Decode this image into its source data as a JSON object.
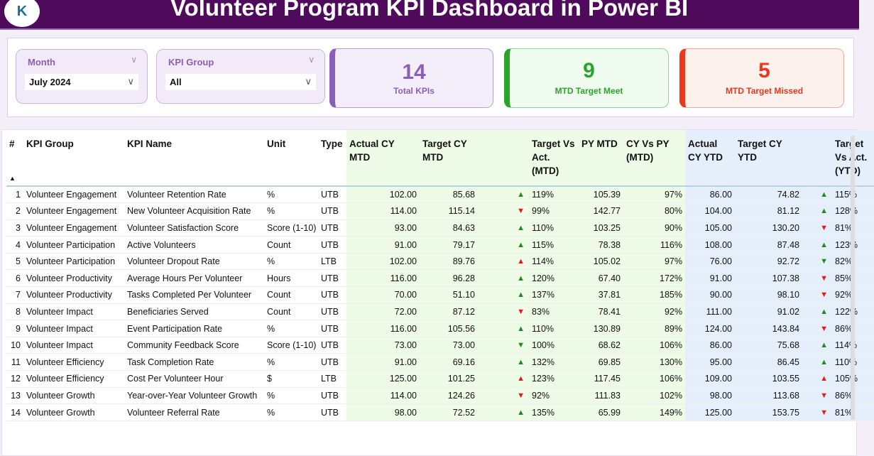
{
  "header": {
    "title": "Volunteer Program KPI Dashboard in Power BI",
    "logo_text": "K"
  },
  "slicers": {
    "month": {
      "label": "Month",
      "value": "July 2024"
    },
    "kpi_group": {
      "label": "KPI Group",
      "value": "All"
    }
  },
  "cards": [
    {
      "value": "14",
      "label": "Total KPIs",
      "color": "#8a5fb8"
    },
    {
      "value": "9",
      "label": "MTD Target Meet",
      "color": "#2aa52a"
    },
    {
      "value": "5",
      "label": "MTD Target Missed",
      "color": "#e8391d"
    }
  ],
  "table": {
    "columns": [
      "#",
      "KPI Group",
      "KPI Name",
      "Unit",
      "Type",
      "Actual CY MTD",
      "Target CY MTD",
      "",
      "Target Vs Act. (MTD)",
      "PY MTD",
      "CY Vs PY (MTD)",
      "Actual CY YTD",
      "Target CY YTD",
      "",
      "Target Vs Act. (YTD)"
    ],
    "sort_icon": "▲",
    "rows": [
      [
        "1",
        "Volunteer Engagement",
        "Volunteer Retention Rate",
        "%",
        "UTB",
        "102.00",
        "85.68",
        "up-green",
        "119%",
        "105.39",
        "97%",
        "86.00",
        "74.82",
        "up-green",
        "115%"
      ],
      [
        "2",
        "Volunteer Engagement",
        "New Volunteer Acquisition Rate",
        "%",
        "UTB",
        "114.00",
        "115.14",
        "down-red",
        "99%",
        "142.77",
        "80%",
        "104.00",
        "81.12",
        "up-green",
        "128%"
      ],
      [
        "3",
        "Volunteer Engagement",
        "Volunteer Satisfaction Score",
        "Score (1-10)",
        "UTB",
        "93.00",
        "84.63",
        "up-green",
        "110%",
        "103.25",
        "90%",
        "105.00",
        "130.20",
        "down-red",
        "81%"
      ],
      [
        "4",
        "Volunteer Participation",
        "Active Volunteers",
        "Count",
        "UTB",
        "91.00",
        "79.17",
        "up-green",
        "115%",
        "78.38",
        "116%",
        "108.00",
        "87.48",
        "up-green",
        "123%"
      ],
      [
        "5",
        "Volunteer Participation",
        "Volunteer Dropout Rate",
        "%",
        "LTB",
        "102.00",
        "89.76",
        "up-red",
        "114%",
        "105.02",
        "97%",
        "76.00",
        "92.72",
        "down-green",
        "82%"
      ],
      [
        "6",
        "Volunteer Productivity",
        "Average Hours Per Volunteer",
        "Hours",
        "UTB",
        "116.00",
        "96.28",
        "up-green",
        "120%",
        "67.40",
        "172%",
        "91.00",
        "107.38",
        "down-red",
        "85%"
      ],
      [
        "7",
        "Volunteer Productivity",
        "Tasks Completed Per Volunteer",
        "Count",
        "UTB",
        "70.00",
        "51.10",
        "up-green",
        "137%",
        "37.81",
        "185%",
        "90.00",
        "98.10",
        "down-red",
        "92%"
      ],
      [
        "8",
        "Volunteer Impact",
        "Beneficiaries Served",
        "Count",
        "UTB",
        "72.00",
        "87.12",
        "down-red",
        "83%",
        "78.41",
        "92%",
        "111.00",
        "91.02",
        "up-green",
        "122%"
      ],
      [
        "9",
        "Volunteer Impact",
        "Event Participation Rate",
        "%",
        "UTB",
        "116.00",
        "105.56",
        "up-green",
        "110%",
        "130.89",
        "89%",
        "124.00",
        "143.84",
        "down-red",
        "86%"
      ],
      [
        "10",
        "Volunteer Impact",
        "Community Feedback Score",
        "Score (1-10)",
        "UTB",
        "73.00",
        "73.00",
        "down-green",
        "100%",
        "68.62",
        "106%",
        "86.00",
        "75.68",
        "up-green",
        "114%"
      ],
      [
        "11",
        "Volunteer Efficiency",
        "Task Completion Rate",
        "%",
        "UTB",
        "91.00",
        "69.16",
        "up-green",
        "132%",
        "69.85",
        "130%",
        "95.00",
        "86.45",
        "up-green",
        "110%"
      ],
      [
        "12",
        "Volunteer Efficiency",
        "Cost Per Volunteer Hour",
        "$",
        "LTB",
        "125.00",
        "101.25",
        "up-red",
        "123%",
        "117.45",
        "106%",
        "109.00",
        "103.55",
        "up-red",
        "105%"
      ],
      [
        "13",
        "Volunteer Growth",
        "Year-over-Year Volunteer Growth",
        "%",
        "UTB",
        "114.00",
        "124.26",
        "down-red",
        "92%",
        "111.83",
        "102%",
        "98.00",
        "113.68",
        "down-red",
        "86%"
      ],
      [
        "14",
        "Volunteer Growth",
        "Volunteer Referral Rate",
        "%",
        "UTB",
        "98.00",
        "72.52",
        "up-green",
        "135%",
        "65.99",
        "149%",
        "125.00",
        "153.75",
        "down-red",
        "81%"
      ]
    ]
  },
  "colors": {
    "green": "#1e8a1e",
    "red": "#e01b1b"
  }
}
